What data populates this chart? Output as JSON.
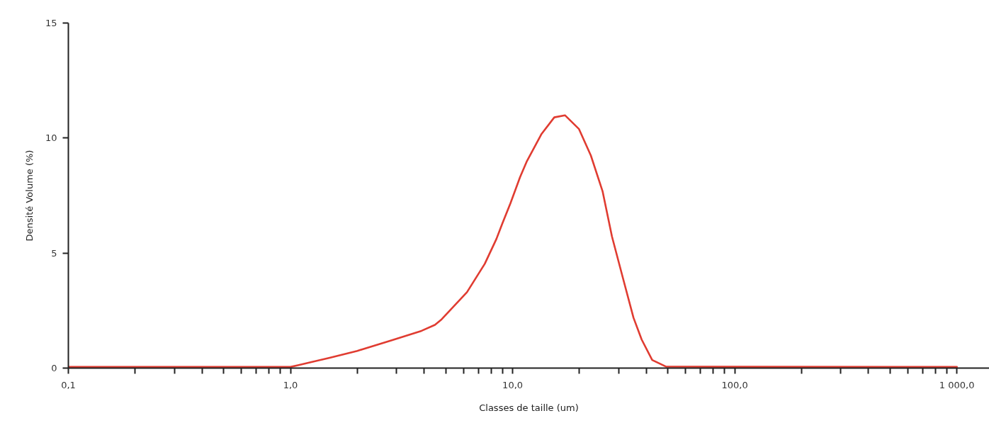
{
  "chart_data": {
    "type": "line",
    "xlabel": "Classes de taille (um)",
    "ylabel": "Densité Volume (%)",
    "x": [
      0.1,
      1.0,
      1.08,
      1.5,
      2.0,
      2.84,
      3.89,
      4.47,
      4.79,
      6.23,
      7.49,
      8.45,
      9.0,
      9.78,
      10.8,
      11.6,
      13.5,
      15.4,
      17.2,
      19.9,
      22.5,
      25.4,
      28.0,
      31.5,
      35.0,
      38.1,
      42.5,
      49.2,
      1000
    ],
    "series": [
      {
        "color": "#e03c31",
        "values": [
          0.05,
          0.05,
          0.12,
          0.45,
          0.75,
          1.2,
          1.62,
          1.88,
          2.12,
          3.3,
          4.53,
          5.61,
          6.3,
          7.17,
          8.3,
          9.0,
          10.18,
          10.9,
          10.99,
          10.39,
          9.24,
          7.69,
          5.72,
          3.85,
          2.19,
          1.24,
          0.35,
          0.06,
          0.05
        ]
      }
    ],
    "log": "x",
    "xlim": [
      0.1,
      1400
    ],
    "ylim": [
      0,
      15
    ],
    "xticks": [
      {
        "value": 0.1,
        "label": "0,1"
      },
      {
        "value": 0.2,
        "label": null
      },
      {
        "value": 0.3,
        "label": null
      },
      {
        "value": 0.4,
        "label": null
      },
      {
        "value": 0.5,
        "label": null
      },
      {
        "value": 0.6,
        "label": null
      },
      {
        "value": 0.7,
        "label": null
      },
      {
        "value": 0.8,
        "label": null
      },
      {
        "value": 0.9,
        "label": null
      },
      {
        "value": 1,
        "label": "1,0"
      },
      {
        "value": 2,
        "label": null
      },
      {
        "value": 3,
        "label": null
      },
      {
        "value": 4,
        "label": null
      },
      {
        "value": 5,
        "label": null
      },
      {
        "value": 6,
        "label": null
      },
      {
        "value": 7,
        "label": null
      },
      {
        "value": 8,
        "label": null
      },
      {
        "value": 9,
        "label": null
      },
      {
        "value": 10,
        "label": "10,0"
      },
      {
        "value": 20,
        "label": null
      },
      {
        "value": 30,
        "label": null
      },
      {
        "value": 40,
        "label": null
      },
      {
        "value": 50,
        "label": null
      },
      {
        "value": 60,
        "label": null
      },
      {
        "value": 70,
        "label": null
      },
      {
        "value": 80,
        "label": null
      },
      {
        "value": 90,
        "label": null
      },
      {
        "value": 100,
        "label": "100,0"
      },
      {
        "value": 200,
        "label": null
      },
      {
        "value": 300,
        "label": null
      },
      {
        "value": 400,
        "label": null
      },
      {
        "value": 500,
        "label": null
      },
      {
        "value": 600,
        "label": null
      },
      {
        "value": 700,
        "label": null
      },
      {
        "value": 800,
        "label": null
      },
      {
        "value": 900,
        "label": null
      },
      {
        "value": 1000,
        "label": "1 000,0"
      }
    ],
    "yticks": [
      0,
      5,
      10,
      15
    ],
    "line_style": "solid"
  }
}
